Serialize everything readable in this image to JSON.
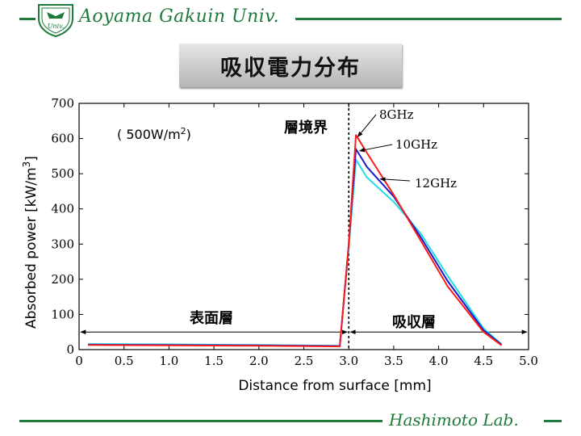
{
  "header": {
    "university": "Aoyama Gakuin Univ.",
    "crest_text": "Univ."
  },
  "footer": {
    "lab": "Hashimoto Lab."
  },
  "slide_title": "吸収電力分布",
  "colors": {
    "accent_green": "#1e7a3a",
    "s8": "#ff1a1a",
    "s10": "#1a1acc",
    "s12": "#22dde6"
  },
  "chart_data": {
    "type": "line",
    "xlabel": "Distance  from  surface  [mm]",
    "ylabel": "Absorbed  power  [kW/m",
    "ylabel_sup": "3",
    "ylabel_end": "]",
    "xlim": [
      0,
      5.0
    ],
    "ylim": [
      0,
      700
    ],
    "xticks": [
      "0",
      "0.5",
      "1.0",
      "1.5",
      "2.0",
      "2.5",
      "3.0",
      "3.5",
      "4.0",
      "4.5",
      "5.0"
    ],
    "yticks": [
      "0",
      "100",
      "200",
      "300",
      "400",
      "500",
      "600",
      "700"
    ],
    "annotations": {
      "power_pre": "( 500W/m",
      "power_sup": "2",
      "power_post": ")",
      "boundary": "層境界",
      "surface_layer": "表面層",
      "absorbing_layer": "吸収層"
    },
    "boundary_x": 3.0,
    "series": [
      {
        "name": "8GHz",
        "color": "#ff1a1a",
        "x": [
          0.1,
          1.0,
          2.0,
          2.9,
          3.0,
          3.08,
          3.2,
          3.5,
          3.8,
          4.1,
          4.3,
          4.5,
          4.7
        ],
        "y": [
          13,
          12,
          11,
          9,
          300,
          610,
          560,
          440,
          310,
          180,
          115,
          50,
          12
        ]
      },
      {
        "name": "10GHz",
        "color": "#1a1acc",
        "x": [
          0.1,
          1.0,
          2.0,
          2.9,
          3.0,
          3.08,
          3.2,
          3.5,
          3.8,
          4.1,
          4.3,
          4.5,
          4.7
        ],
        "y": [
          14,
          13,
          12,
          10,
          300,
          570,
          520,
          435,
          320,
          195,
          125,
          55,
          14
        ]
      },
      {
        "name": "12GHz",
        "color": "#22dde6",
        "x": [
          0.1,
          1.0,
          2.0,
          2.9,
          3.0,
          3.08,
          3.2,
          3.5,
          3.8,
          4.1,
          4.3,
          4.5,
          4.7
        ],
        "y": [
          16,
          15,
          13,
          11,
          290,
          540,
          490,
          420,
          330,
          210,
          135,
          60,
          15
        ]
      }
    ]
  }
}
